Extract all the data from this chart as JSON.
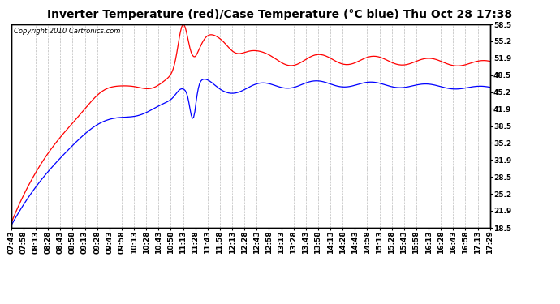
{
  "title": "Inverter Temperature (red)/Case Temperature (°C blue) Thu Oct 28 17:38",
  "copyright": "Copyright 2010 Cartronics.com",
  "yticks": [
    18.5,
    21.9,
    25.2,
    28.5,
    31.9,
    35.2,
    38.5,
    41.9,
    45.2,
    48.5,
    51.9,
    55.2,
    58.5
  ],
  "ymin": 18.5,
  "ymax": 58.5,
  "background_color": "#ffffff",
  "grid_color": "#bbbbbb",
  "xtick_labels": [
    "07:43",
    "07:58",
    "08:13",
    "08:28",
    "08:43",
    "08:58",
    "09:13",
    "09:28",
    "09:43",
    "09:58",
    "10:13",
    "10:28",
    "10:43",
    "10:58",
    "11:13",
    "11:28",
    "11:43",
    "11:58",
    "12:13",
    "12:28",
    "12:43",
    "12:58",
    "13:13",
    "13:28",
    "13:43",
    "13:58",
    "14:13",
    "14:28",
    "14:43",
    "14:58",
    "15:13",
    "15:28",
    "15:43",
    "15:58",
    "16:13",
    "16:28",
    "16:43",
    "16:58",
    "17:13",
    "17:29"
  ],
  "red_color": "#ff0000",
  "blue_color": "#0000ff",
  "title_fontsize": 10,
  "tick_fontsize": 6.5,
  "copyright_fontsize": 6
}
